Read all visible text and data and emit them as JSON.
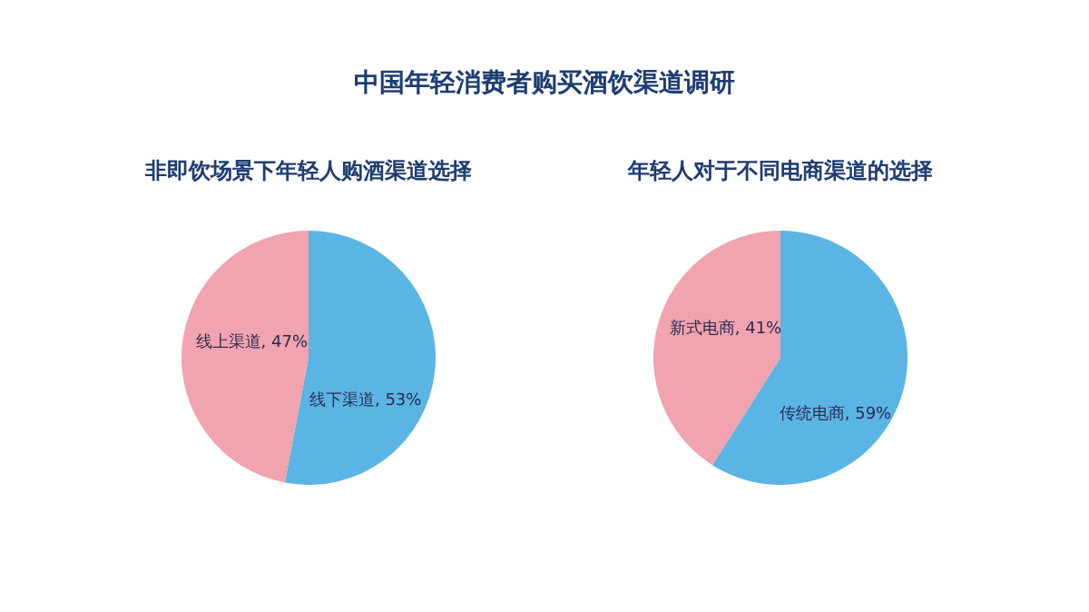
{
  "chart_data": [
    {
      "type": "pie",
      "title": "中国年轻消费者购买酒饮渠道调研",
      "subtitle": "非即饮场景下年轻人购酒渠道选择",
      "categories": [
        "线下渠道",
        "线上渠道"
      ],
      "values": [
        53,
        47
      ],
      "colors": [
        "#5ab4e4",
        "#f1a3af"
      ],
      "value_labels": [
        "53%",
        "47%"
      ]
    },
    {
      "type": "pie",
      "subtitle": "年轻人对于不同电商渠道的选择",
      "categories": [
        "传统电商",
        "新式电商"
      ],
      "values": [
        59,
        41
      ],
      "colors": [
        "#5ab4e4",
        "#f1a3af"
      ],
      "value_labels": [
        "59%",
        "41%"
      ]
    }
  ]
}
